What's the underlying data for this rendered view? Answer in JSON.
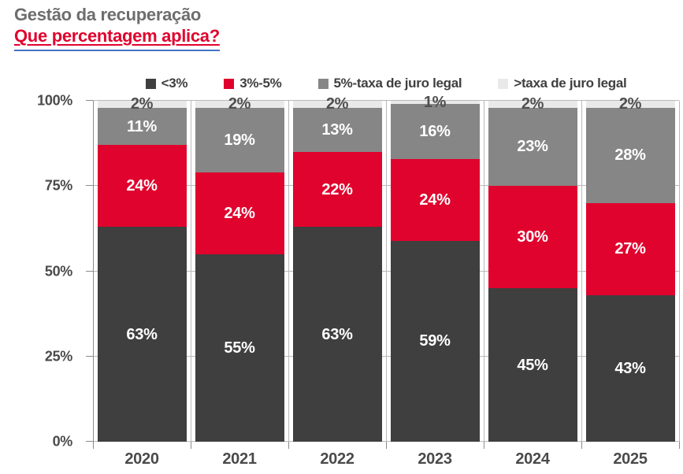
{
  "header": {
    "title": "Gestão da recuperação",
    "subtitle": "Que percentagem aplica?"
  },
  "chart_data": {
    "type": "bar",
    "variant": "stacked-100-percent",
    "title": "Gestão da recuperação",
    "subtitle": "Que percentagem aplica?",
    "categories": [
      "2020",
      "2021",
      "2022",
      "2023",
      "2024",
      "2025"
    ],
    "series": [
      {
        "name": "<3%",
        "color": "#3f3f3f",
        "label_color": "#ffffff",
        "values": [
          63,
          55,
          63,
          59,
          45,
          43
        ]
      },
      {
        "name": "3%-5%",
        "color": "#e0032d",
        "label_color": "#ffffff",
        "values": [
          24,
          24,
          22,
          24,
          30,
          27
        ]
      },
      {
        "name": "5%-taxa de juro legal",
        "color": "#868686",
        "label_color": "#ffffff",
        "values": [
          11,
          19,
          13,
          16,
          23,
          28
        ]
      },
      {
        "name": ">taxa de juro legal",
        "color": "#e9e9e9",
        "label_color": "#4f4f4f",
        "values": [
          2,
          2,
          2,
          1,
          2,
          2
        ]
      }
    ],
    "y_ticks": [
      "0%",
      "25%",
      "50%",
      "75%",
      "100%"
    ],
    "y_tick_values": [
      0,
      25,
      50,
      75,
      100
    ],
    "ylim": [
      0,
      100
    ],
    "grid": true,
    "legend_position": "top",
    "data_labels": "percent"
  },
  "colors": {
    "title_gray": "#6d6d6d",
    "accent_red": "#e0032d",
    "axis_text": "#4a4a4a",
    "legend_text": "#3f3f3f",
    "gridline": "#b9b9b9",
    "axis_line": "#8c8c8c",
    "subtitle_underline_blue": "#4472c4"
  }
}
